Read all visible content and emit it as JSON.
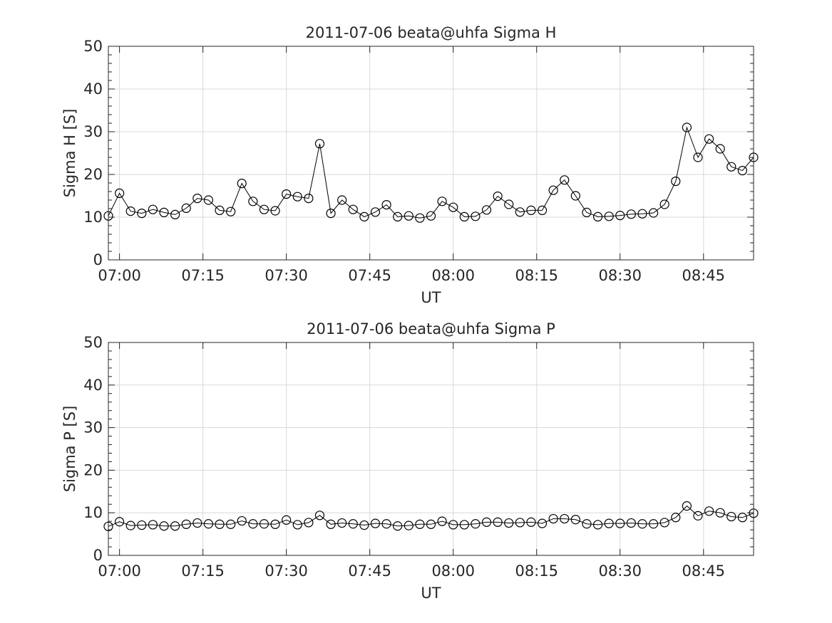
{
  "chart_data": [
    {
      "type": "line",
      "title": "2011-07-06  beata@uhfa Sigma H",
      "xlabel": "UT",
      "ylabel": "Sigma H [S]",
      "ylim": [
        0,
        50
      ],
      "yticks": [
        0,
        10,
        20,
        30,
        40,
        50
      ],
      "xlim": [
        "06:58",
        "08:54"
      ],
      "xticks": [
        "07:00",
        "07:15",
        "07:30",
        "07:45",
        "08:00",
        "08:15",
        "08:30",
        "08:45"
      ],
      "grid": true,
      "x": [
        "06:58",
        "07:00",
        "07:02",
        "07:04",
        "07:06",
        "07:08",
        "07:10",
        "07:12",
        "07:14",
        "07:16",
        "07:18",
        "07:20",
        "07:22",
        "07:24",
        "07:26",
        "07:28",
        "07:30",
        "07:32",
        "07:34",
        "07:36",
        "07:38",
        "07:40",
        "07:42",
        "07:44",
        "07:46",
        "07:48",
        "07:50",
        "07:52",
        "07:54",
        "07:56",
        "07:58",
        "08:00",
        "08:02",
        "08:04",
        "08:06",
        "08:08",
        "08:10",
        "08:12",
        "08:14",
        "08:16",
        "08:18",
        "08:20",
        "08:22",
        "08:24",
        "08:26",
        "08:28",
        "08:30",
        "08:32",
        "08:34",
        "08:36",
        "08:38",
        "08:40",
        "08:42",
        "08:44",
        "08:46",
        "08:48",
        "08:50",
        "08:52",
        "08:54"
      ],
      "series": [
        {
          "values": [
            10.3,
            15.6,
            11.4,
            10.9,
            11.8,
            11.1,
            10.6,
            12.1,
            14.4,
            14.0,
            11.6,
            11.3,
            17.9,
            13.7,
            11.8,
            11.5,
            15.4,
            14.8,
            14.4,
            27.2,
            10.9,
            14.0,
            11.8,
            10.1,
            11.2,
            12.9,
            10.1,
            10.3,
            9.8,
            10.3,
            13.7,
            12.3,
            10.1,
            10.2,
            11.7,
            14.9,
            13.0,
            11.2,
            11.6,
            11.6,
            16.3,
            18.7,
            15.0,
            11.1,
            10.1,
            10.2,
            10.4,
            10.7,
            10.8,
            11.0,
            13.0,
            18.4,
            31.0,
            24.0,
            28.3,
            26.0,
            21.8,
            20.9,
            24.0
          ]
        }
      ]
    },
    {
      "type": "line",
      "title": "2011-07-06  beata@uhfa Sigma P",
      "xlabel": "UT",
      "ylabel": "Sigma P [S]",
      "ylim": [
        0,
        50
      ],
      "yticks": [
        0,
        10,
        20,
        30,
        40,
        50
      ],
      "xlim": [
        "06:58",
        "08:54"
      ],
      "xticks": [
        "07:00",
        "07:15",
        "07:30",
        "07:45",
        "08:00",
        "08:15",
        "08:30",
        "08:45"
      ],
      "grid": true,
      "x": [
        "06:58",
        "07:00",
        "07:02",
        "07:04",
        "07:06",
        "07:08",
        "07:10",
        "07:12",
        "07:14",
        "07:16",
        "07:18",
        "07:20",
        "07:22",
        "07:24",
        "07:26",
        "07:28",
        "07:30",
        "07:32",
        "07:34",
        "07:36",
        "07:38",
        "07:40",
        "07:42",
        "07:44",
        "07:46",
        "07:48",
        "07:50",
        "07:52",
        "07:54",
        "07:56",
        "07:58",
        "08:00",
        "08:02",
        "08:04",
        "08:06",
        "08:08",
        "08:10",
        "08:12",
        "08:14",
        "08:16",
        "08:18",
        "08:20",
        "08:22",
        "08:24",
        "08:26",
        "08:28",
        "08:30",
        "08:32",
        "08:34",
        "08:36",
        "08:38",
        "08:40",
        "08:42",
        "08:44",
        "08:46",
        "08:48",
        "08:50",
        "08:52",
        "08:54"
      ],
      "series": [
        {
          "values": [
            6.8,
            7.9,
            7.0,
            7.1,
            7.2,
            6.9,
            6.9,
            7.3,
            7.6,
            7.4,
            7.3,
            7.3,
            8.1,
            7.4,
            7.4,
            7.3,
            8.3,
            7.2,
            7.7,
            9.4,
            7.3,
            7.6,
            7.4,
            7.1,
            7.5,
            7.4,
            6.9,
            7.0,
            7.3,
            7.3,
            8.0,
            7.2,
            7.2,
            7.4,
            7.8,
            7.8,
            7.6,
            7.7,
            7.8,
            7.5,
            8.6,
            8.6,
            8.4,
            7.4,
            7.2,
            7.5,
            7.5,
            7.6,
            7.4,
            7.4,
            7.7,
            8.9,
            11.6,
            9.3,
            10.4,
            10.0,
            9.1,
            8.9,
            9.9
          ]
        }
      ]
    }
  ]
}
